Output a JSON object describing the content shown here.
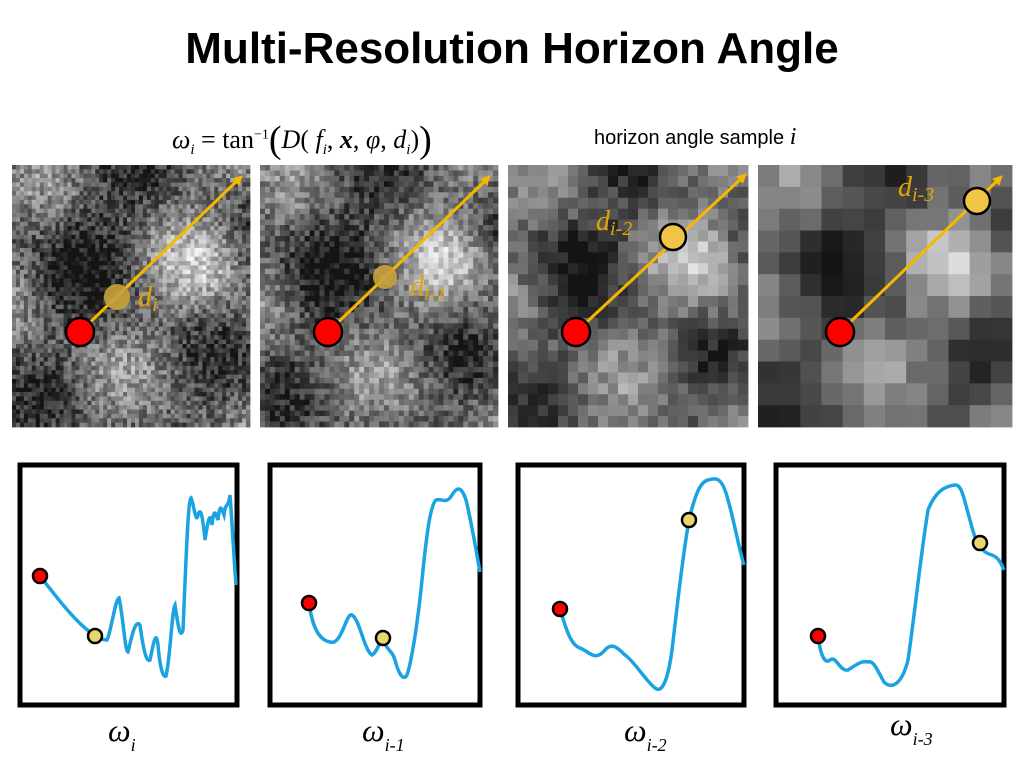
{
  "title": "Multi-Resolution Horizon Angle",
  "formula": {
    "lhs_symbol": "ω",
    "lhs_sub": "i",
    "equals_tan": "= tan",
    "inverse": "−1",
    "func": "D",
    "f": "f",
    "f_sub": "i",
    "x": "x",
    "phi": "φ",
    "d": "d",
    "d_sub": "i"
  },
  "sample_label": {
    "text": "horizon angle sample ",
    "var": "i"
  },
  "panels": [
    {
      "d_label_main": "d",
      "d_label_sub": "i",
      "omega_symbol": "ω",
      "omega_sub": "i"
    },
    {
      "d_label_main": "d",
      "d_label_sub": "i-1",
      "omega_symbol": "ω",
      "omega_sub": "i-1"
    },
    {
      "d_label_main": "d",
      "d_label_sub": "i-2",
      "omega_symbol": "ω",
      "omega_sub": "i-2"
    },
    {
      "d_label_main": "d",
      "d_label_sub": "i-3",
      "omega_symbol": "ω",
      "omega_sub": "i-3"
    }
  ],
  "colors": {
    "arrow": "#f5b800",
    "sample_point": "#e2b53a",
    "origin_point": "#ff0000",
    "profile_line": "#1aa3e0",
    "label": "#e3a400"
  }
}
